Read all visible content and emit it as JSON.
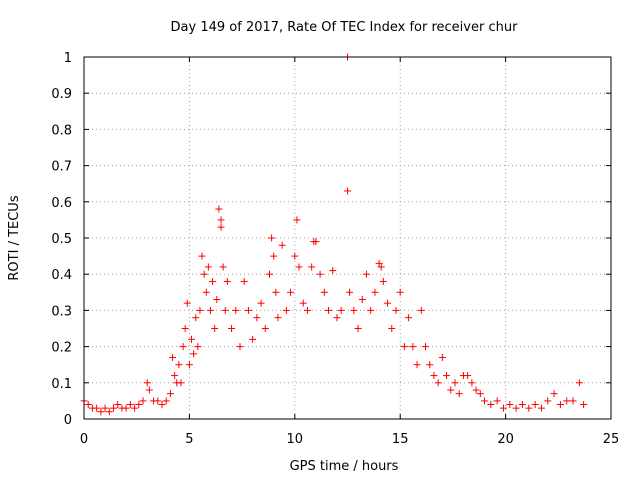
{
  "chart_data": {
    "type": "scatter",
    "title": "Day 149 of 2017, Rate Of TEC Index for receiver chur",
    "xlabel": "GPS time / hours",
    "ylabel": "ROTI / TECUs",
    "xlim": [
      0,
      25
    ],
    "ylim": [
      0,
      1
    ],
    "xticks": [
      0,
      5,
      10,
      15,
      20,
      25
    ],
    "yticks": [
      0,
      0.1,
      0.2,
      0.3,
      0.4,
      0.5,
      0.6,
      0.7,
      0.8,
      0.9,
      1
    ],
    "grid": true,
    "marker": "+",
    "color": "#ff0000",
    "series": [
      {
        "points": [
          [
            0.0,
            0.05
          ],
          [
            0.2,
            0.04
          ],
          [
            0.4,
            0.03
          ],
          [
            0.6,
            0.03
          ],
          [
            0.8,
            0.02
          ],
          [
            1.0,
            0.03
          ],
          [
            1.2,
            0.02
          ],
          [
            1.4,
            0.03
          ],
          [
            1.6,
            0.04
          ],
          [
            1.8,
            0.03
          ],
          [
            2.0,
            0.03
          ],
          [
            2.2,
            0.04
          ],
          [
            2.4,
            0.03
          ],
          [
            2.6,
            0.04
          ],
          [
            2.8,
            0.05
          ],
          [
            3.0,
            0.1
          ],
          [
            3.1,
            0.08
          ],
          [
            3.3,
            0.05
          ],
          [
            3.5,
            0.05
          ],
          [
            3.7,
            0.04
          ],
          [
            3.9,
            0.05
          ],
          [
            4.1,
            0.07
          ],
          [
            4.2,
            0.17
          ],
          [
            4.3,
            0.12
          ],
          [
            4.4,
            0.1
          ],
          [
            4.5,
            0.15
          ],
          [
            4.6,
            0.1
          ],
          [
            4.7,
            0.2
          ],
          [
            4.8,
            0.25
          ],
          [
            4.9,
            0.32
          ],
          [
            5.0,
            0.15
          ],
          [
            5.1,
            0.22
          ],
          [
            5.2,
            0.18
          ],
          [
            5.3,
            0.28
          ],
          [
            5.4,
            0.2
          ],
          [
            5.5,
            0.3
          ],
          [
            5.6,
            0.45
          ],
          [
            5.7,
            0.4
          ],
          [
            5.8,
            0.35
          ],
          [
            5.9,
            0.42
          ],
          [
            6.0,
            0.3
          ],
          [
            6.1,
            0.38
          ],
          [
            6.2,
            0.25
          ],
          [
            6.3,
            0.33
          ],
          [
            6.4,
            0.58
          ],
          [
            6.5,
            0.55
          ],
          [
            6.5,
            0.53
          ],
          [
            6.6,
            0.42
          ],
          [
            6.7,
            0.3
          ],
          [
            6.8,
            0.38
          ],
          [
            7.0,
            0.25
          ],
          [
            7.2,
            0.3
          ],
          [
            7.4,
            0.2
          ],
          [
            7.6,
            0.38
          ],
          [
            7.8,
            0.3
          ],
          [
            8.0,
            0.22
          ],
          [
            8.2,
            0.28
          ],
          [
            8.4,
            0.32
          ],
          [
            8.6,
            0.25
          ],
          [
            8.8,
            0.4
          ],
          [
            8.9,
            0.5
          ],
          [
            9.0,
            0.45
          ],
          [
            9.1,
            0.35
          ],
          [
            9.2,
            0.28
          ],
          [
            9.4,
            0.48
          ],
          [
            9.6,
            0.3
          ],
          [
            9.8,
            0.35
          ],
          [
            10.0,
            0.45
          ],
          [
            10.1,
            0.55
          ],
          [
            10.2,
            0.42
          ],
          [
            10.4,
            0.32
          ],
          [
            10.6,
            0.3
          ],
          [
            10.8,
            0.42
          ],
          [
            10.9,
            0.49
          ],
          [
            11.0,
            0.49
          ],
          [
            11.2,
            0.4
          ],
          [
            11.4,
            0.35
          ],
          [
            11.6,
            0.3
          ],
          [
            11.8,
            0.41
          ],
          [
            12.0,
            0.28
          ],
          [
            12.2,
            0.3
          ],
          [
            12.5,
            1.0
          ],
          [
            12.5,
            0.63
          ],
          [
            12.6,
            0.35
          ],
          [
            12.8,
            0.3
          ],
          [
            13.0,
            0.25
          ],
          [
            13.2,
            0.33
          ],
          [
            13.4,
            0.4
          ],
          [
            13.6,
            0.3
          ],
          [
            13.8,
            0.35
          ],
          [
            14.0,
            0.43
          ],
          [
            14.1,
            0.42
          ],
          [
            14.2,
            0.38
          ],
          [
            14.4,
            0.32
          ],
          [
            14.6,
            0.25
          ],
          [
            14.8,
            0.3
          ],
          [
            15.0,
            0.35
          ],
          [
            15.2,
            0.2
          ],
          [
            15.4,
            0.28
          ],
          [
            15.6,
            0.2
          ],
          [
            15.8,
            0.15
          ],
          [
            16.0,
            0.3
          ],
          [
            16.2,
            0.2
          ],
          [
            16.4,
            0.15
          ],
          [
            16.6,
            0.12
          ],
          [
            16.8,
            0.1
          ],
          [
            17.0,
            0.17
          ],
          [
            17.2,
            0.12
          ],
          [
            17.4,
            0.08
          ],
          [
            17.6,
            0.1
          ],
          [
            17.8,
            0.07
          ],
          [
            18.0,
            0.12
          ],
          [
            18.2,
            0.12
          ],
          [
            18.4,
            0.1
          ],
          [
            18.6,
            0.08
          ],
          [
            18.8,
            0.07
          ],
          [
            19.0,
            0.05
          ],
          [
            19.3,
            0.04
          ],
          [
            19.6,
            0.05
          ],
          [
            19.9,
            0.03
          ],
          [
            20.2,
            0.04
          ],
          [
            20.5,
            0.03
          ],
          [
            20.8,
            0.04
          ],
          [
            21.1,
            0.03
          ],
          [
            21.4,
            0.04
          ],
          [
            21.7,
            0.03
          ],
          [
            22.0,
            0.05
          ],
          [
            22.3,
            0.07
          ],
          [
            22.6,
            0.04
          ],
          [
            22.9,
            0.05
          ],
          [
            23.2,
            0.05
          ],
          [
            23.5,
            0.1
          ],
          [
            23.7,
            0.04
          ]
        ]
      }
    ]
  }
}
